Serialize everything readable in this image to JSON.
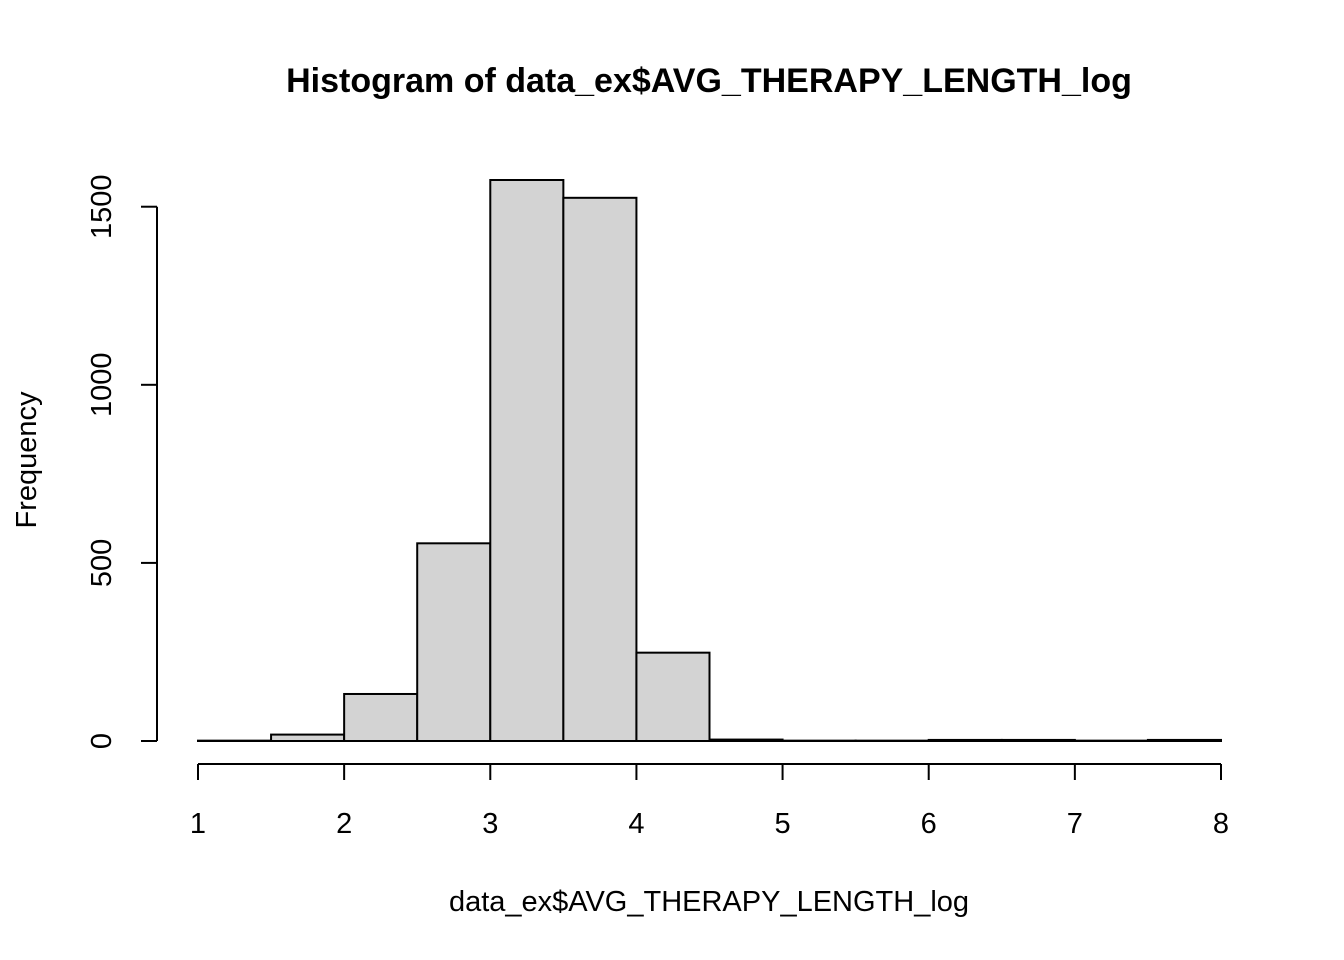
{
  "chart_data": {
    "type": "bar",
    "title": "Histogram of data_ex$AVG_THERAPY_LENGTH_log",
    "xlabel": "data_ex$AVG_THERAPY_LENGTH_log",
    "ylabel": "Frequency",
    "bins": [
      {
        "start": 1.0,
        "end": 1.5,
        "count": 1
      },
      {
        "start": 1.5,
        "end": 2.0,
        "count": 18
      },
      {
        "start": 2.0,
        "end": 2.5,
        "count": 132
      },
      {
        "start": 2.5,
        "end": 3.0,
        "count": 555
      },
      {
        "start": 3.0,
        "end": 3.5,
        "count": 1575
      },
      {
        "start": 3.5,
        "end": 4.0,
        "count": 1525
      },
      {
        "start": 4.0,
        "end": 4.5,
        "count": 248
      },
      {
        "start": 4.5,
        "end": 5.0,
        "count": 4
      },
      {
        "start": 5.0,
        "end": 5.5,
        "count": 1
      },
      {
        "start": 5.5,
        "end": 6.0,
        "count": 1
      },
      {
        "start": 6.0,
        "end": 6.5,
        "count": 3
      },
      {
        "start": 6.5,
        "end": 7.0,
        "count": 3
      },
      {
        "start": 7.0,
        "end": 7.5,
        "count": 1
      },
      {
        "start": 7.5,
        "end": 8.0,
        "count": 3
      }
    ],
    "xlim": [
      1,
      8
    ],
    "ylim": [
      0,
      1575
    ],
    "x_ticks": [
      "1",
      "2",
      "3",
      "4",
      "5",
      "6",
      "7",
      "8"
    ],
    "y_ticks": [
      "0",
      "500",
      "1000",
      "1500"
    ],
    "bar_color": "#d3d3d3",
    "grid": false
  }
}
